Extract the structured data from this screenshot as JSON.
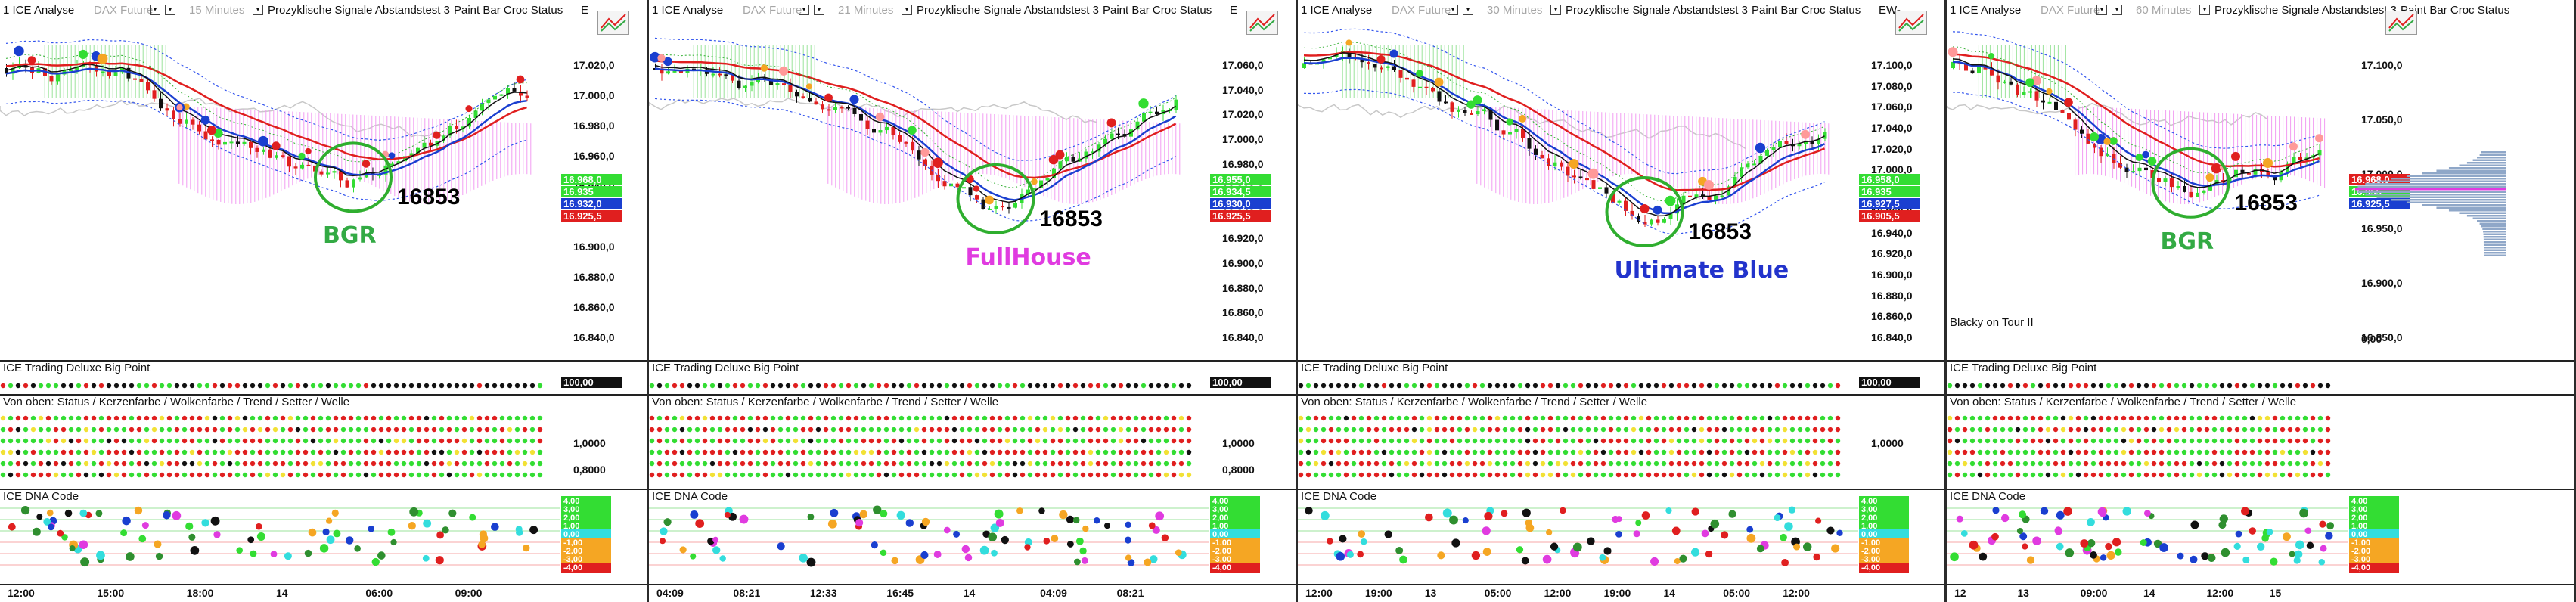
{
  "panels": [
    {
      "header": {
        "window": "1 ICE Analyse",
        "symbol": "DAX Future",
        "timeframe": "15 Minutes",
        "study1": "Prozyklische Signale Abstandstest 3",
        "study2": "Paint Bar Croc Status",
        "extra": "E"
      },
      "price_ticks": [
        "17.020,0",
        "17.000,0",
        "16.980,0",
        "16.960,0",
        "16.940,0",
        "16.920,0",
        "16.900,0",
        "16.880,0",
        "16.860,0",
        "16.840,0"
      ],
      "price_boxes": [
        {
          "text": "16.968,0",
          "color": "#33dd33"
        },
        {
          "text": "16.935",
          "color": "#33dd33"
        },
        {
          "text": "16.932,0",
          "color": "#1a3fd0"
        },
        {
          "text": "16.925,5",
          "color": "#e01f1f"
        }
      ],
      "signal_level": "16853",
      "signal_name": "BGR",
      "signal_color": "#33aa44",
      "indicator_label": "ICE Trading Deluxe Big Point",
      "indicator_value": "100,00",
      "status_label": "Von oben: Status / Kerzenfarbe / Wolkenfarbe / Trend / Setter / Welle",
      "status_ticks": [
        "1,0000",
        "0,8000"
      ],
      "dna_label": "ICE DNA Code",
      "dna_boxes": [
        "4,00",
        "3,00",
        "2,00",
        "1,00",
        "0,00",
        "-1,00",
        "-2,00",
        "-3,00",
        "-4,00"
      ],
      "x_ticks": [
        "12:00",
        "15:00",
        "18:00",
        "14",
        "06:00",
        "09:00"
      ]
    },
    {
      "header": {
        "window": "1 ICE Analyse",
        "symbol": "DAX Future",
        "timeframe": "21 Minutes",
        "study1": "Prozyklische Signale Abstandstest 3",
        "study2": "Paint Bar Croc Status",
        "extra": "E"
      },
      "price_ticks": [
        "17.060,0",
        "17.040,0",
        "17.020,0",
        "17.000,0",
        "16.980,0",
        "16.960,0",
        "16.940,0",
        "16.920,0",
        "16.900,0",
        "16.880,0",
        "16.860,0",
        "16.840,0"
      ],
      "price_boxes": [
        {
          "text": "16.955,0",
          "color": "#33dd33"
        },
        {
          "text": "16.934,5",
          "color": "#33dd33"
        },
        {
          "text": "16.930,0",
          "color": "#1a3fd0"
        },
        {
          "text": "16.925,5",
          "color": "#e01f1f"
        }
      ],
      "signal_level": "16853",
      "signal_name": "FullHouse",
      "signal_color": "#e03be0",
      "indicator_label": "ICE Trading Deluxe Big Point",
      "indicator_value": "100,00",
      "status_label": "Von oben: Status / Kerzenfarbe / Wolkenfarbe / Trend / Setter / Welle",
      "status_ticks": [
        "1,0000",
        "0,8000"
      ],
      "dna_label": "ICE DNA Code",
      "dna_boxes": [
        "4,00",
        "3,00",
        "2,00",
        "1,00",
        "0,00",
        "-1,00",
        "-2,00",
        "-3,00",
        "-4,00"
      ],
      "x_ticks": [
        "04:09",
        "08:21",
        "12:33",
        "16:45",
        "14",
        "04:09",
        "08:21"
      ]
    },
    {
      "header": {
        "window": "1 ICE Analyse",
        "symbol": "DAX Future",
        "timeframe": "30 Minutes",
        "study1": "Prozyklische Signale Abstandstest 3",
        "study2": "Paint Bar Croc Status",
        "extra": "EW-"
      },
      "price_ticks": [
        "17.100,0",
        "17.080,0",
        "17.060,0",
        "17.040,0",
        "17.020,0",
        "17.000,0",
        "16.980,0",
        "16.960,0",
        "16.940,0",
        "16.920,0",
        "16.900,0",
        "16.880,0",
        "16.860,0",
        "16.840,0"
      ],
      "price_boxes": [
        {
          "text": "16.958,0",
          "color": "#33dd33"
        },
        {
          "text": "16.935",
          "color": "#33dd33"
        },
        {
          "text": "16.927,5",
          "color": "#1a3fd0"
        },
        {
          "text": "16.905,5",
          "color": "#e01f1f"
        }
      ],
      "signal_level": "16853",
      "signal_name": "Ultimate Blue",
      "signal_color": "#2233cc",
      "indicator_label": "ICE Trading Deluxe Big Point",
      "indicator_value": "100,00",
      "status_label": "Von oben: Status / Kerzenfarbe / Wolkenfarbe / Trend / Setter / Welle",
      "status_ticks": [
        "1,0000"
      ],
      "dna_label": "ICE DNA Code",
      "dna_boxes": [
        "4,00",
        "3,00",
        "2,00",
        "1,00",
        "0,00",
        "-1,00",
        "-2,00",
        "-3,00",
        "-4,00"
      ],
      "x_ticks": [
        "12:00",
        "19:00",
        "13",
        "05:00",
        "12:00",
        "19:00",
        "14",
        "05:00",
        "12:00"
      ]
    },
    {
      "header": {
        "window": "1 ICE Analyse",
        "symbol": "DAX Future",
        "timeframe": "60 Minutes",
        "study1": "Prozyklische Signale Abstandstest 3",
        "study2": "Paint Bar Croc Status",
        "extra": ""
      },
      "price_ticks": [
        "17.100,0",
        "17.050,0",
        "17.000,0",
        "16.950,0",
        "16.900,0",
        "16.850,0"
      ],
      "price_boxes": [
        {
          "text": "16.968,0",
          "color": "#e01f1f"
        },
        {
          "text": "16.955",
          "color": "#33dd33"
        },
        {
          "text": "16.925,5",
          "color": "#1a3fd0"
        }
      ],
      "signal_level": "16853",
      "signal_name": "BGR",
      "signal_color": "#33aa44",
      "extra_label": "Blacky on Tour II",
      "extra_value": "0,00",
      "indicator_label": "ICE Trading Deluxe Big Point",
      "status_label": "Von oben: Status / Kerzenfarbe / Wolkenfarbe / Trend / Setter / Welle",
      "dna_label": "ICE DNA Code",
      "dna_boxes": [
        "4,00",
        "3,00",
        "2,00",
        "1,00",
        "0,00",
        "-1,00",
        "-2,00",
        "-3,00",
        "-4,00"
      ],
      "x_ticks": [
        "12",
        "13",
        "09:00",
        "14",
        "12:00",
        "15"
      ]
    }
  ],
  "colors": {
    "bull": "#33dd33",
    "bear": "#e01f1f",
    "neutral": "#111111",
    "cloud_pink": "#f29cf2",
    "cloud_green": "#9be39b",
    "ma_blue": "#1a3fd0",
    "ma_red": "#e01f1f",
    "ma_black": "#111111"
  }
}
